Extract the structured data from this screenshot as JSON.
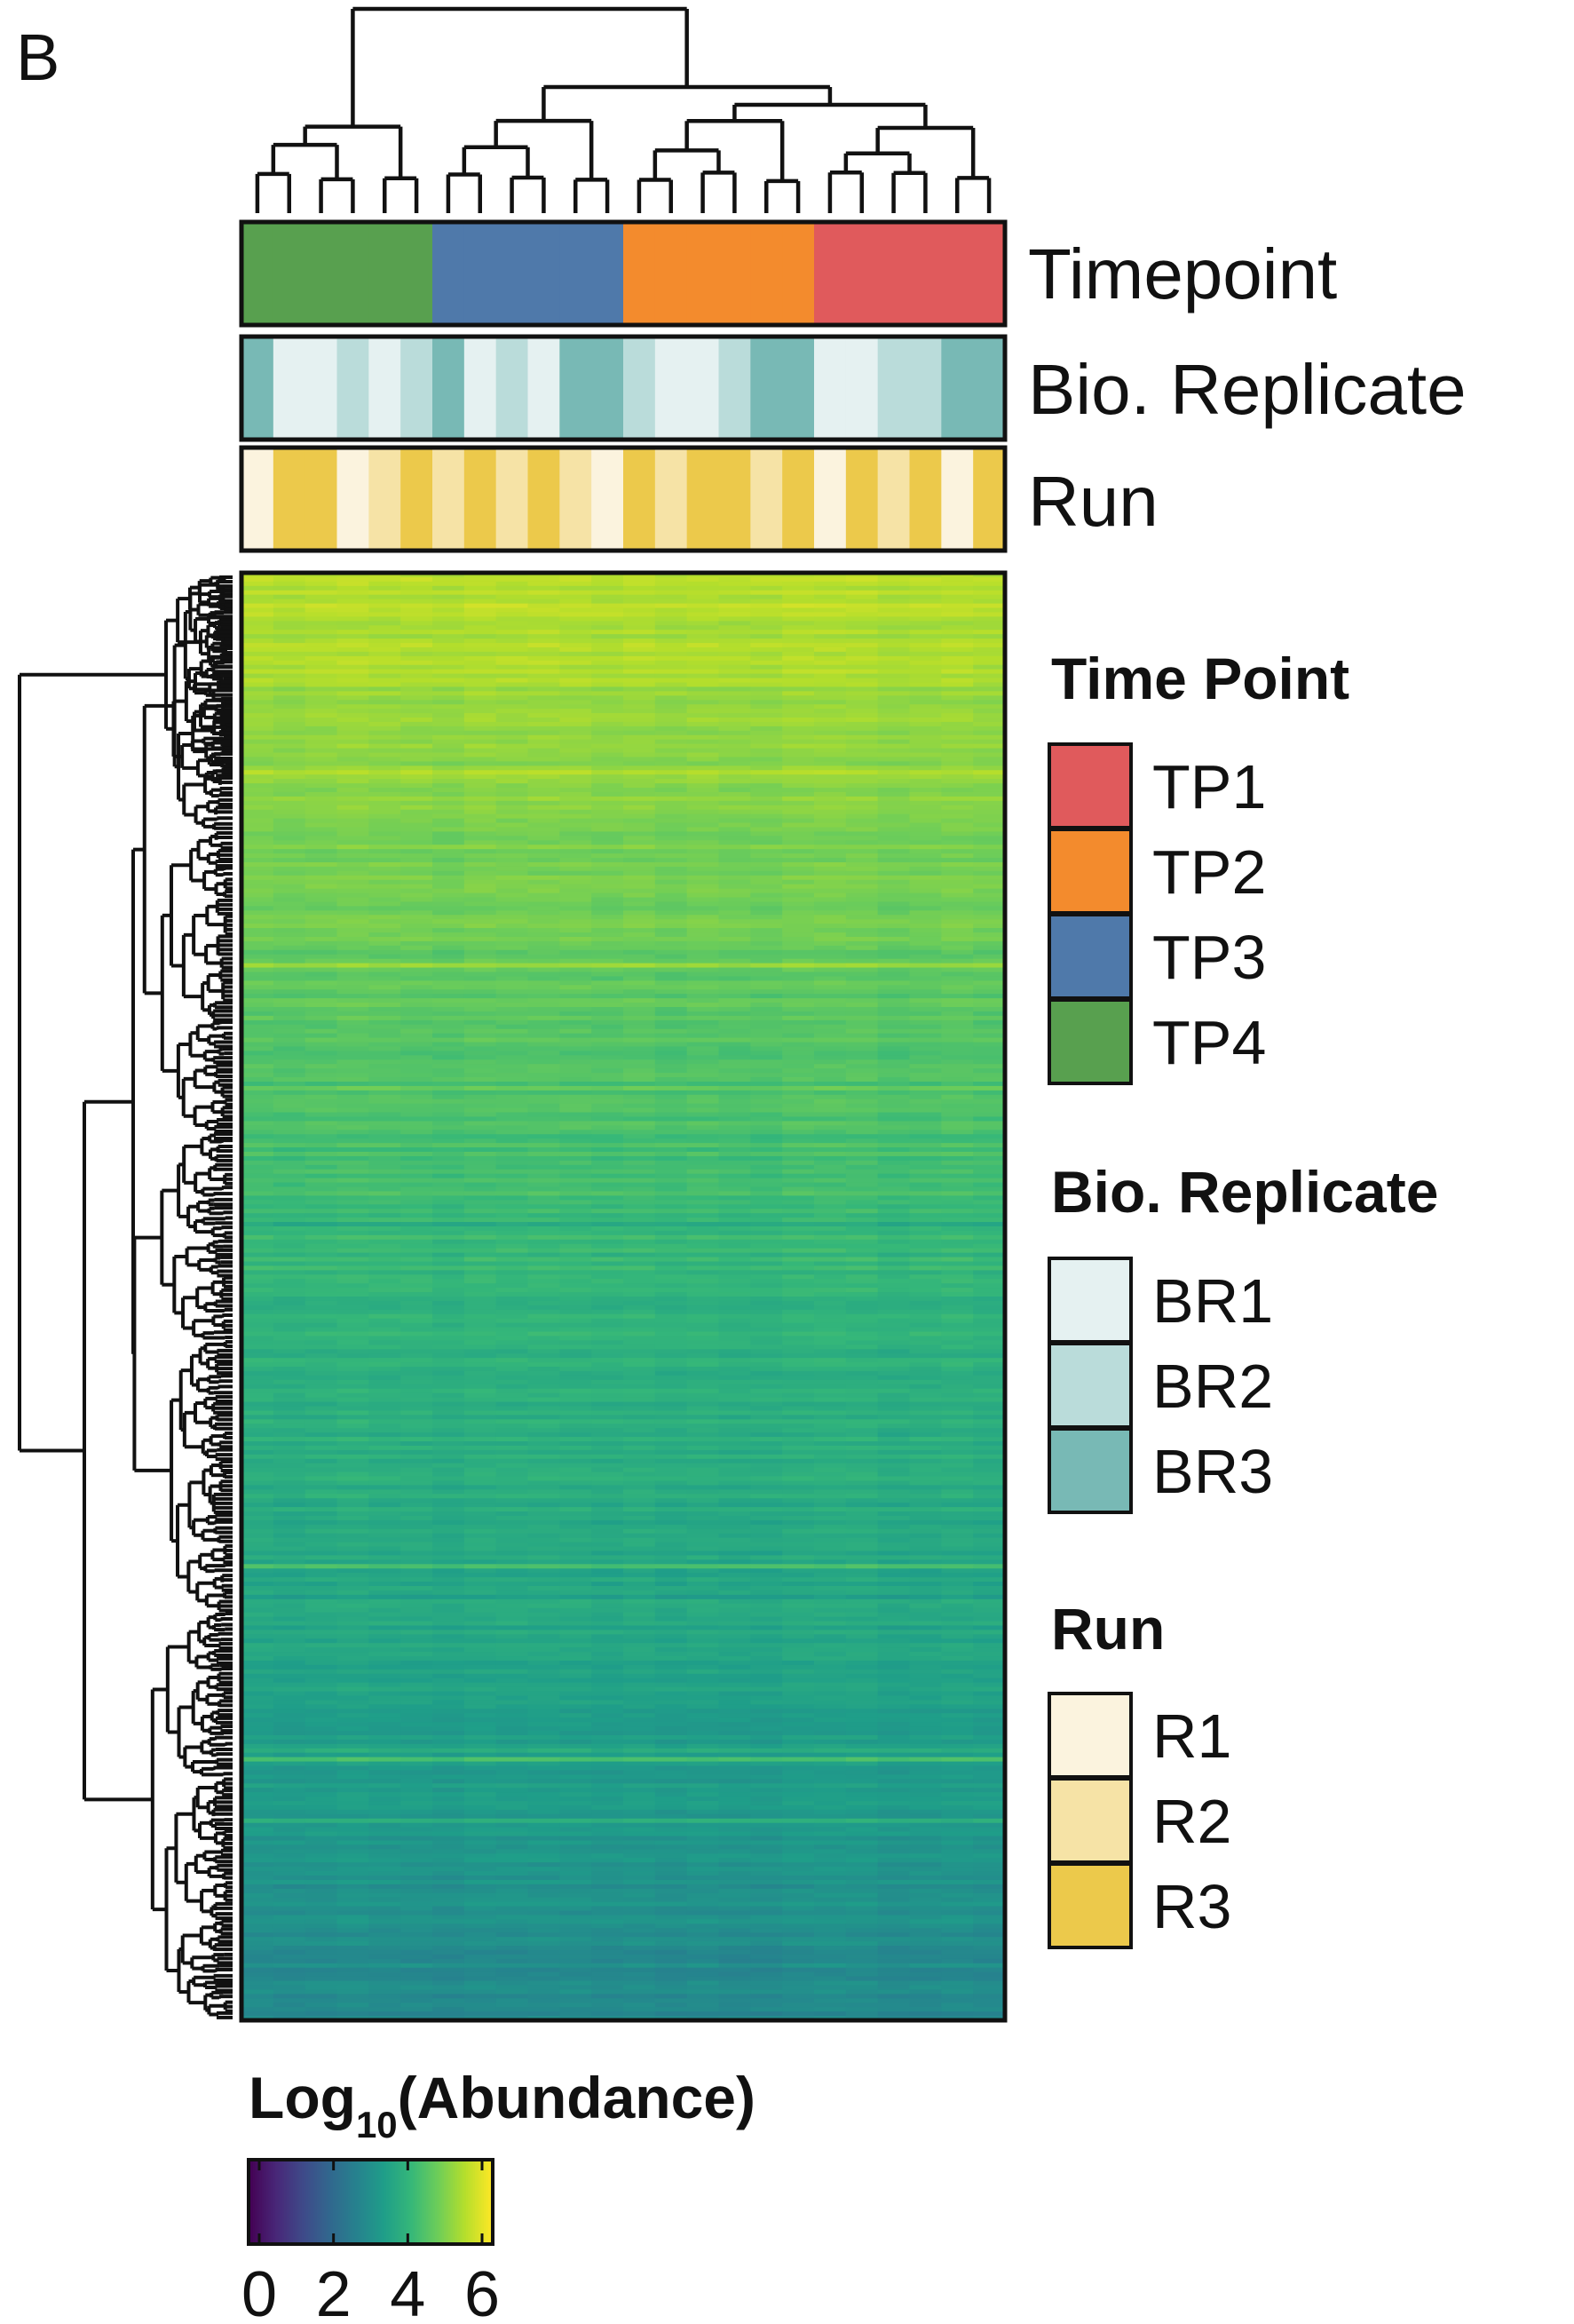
{
  "panel_label": "B",
  "annotation_tracks": [
    {
      "key": "timepoint",
      "label": "Timepoint"
    },
    {
      "key": "bio_replicate",
      "label": "Bio. Replicate"
    },
    {
      "key": "run",
      "label": "Run"
    }
  ],
  "legends": [
    {
      "title": "Time Point",
      "items": [
        {
          "label": "TP1",
          "color": "#e05a5c"
        },
        {
          "label": "TP2",
          "color": "#f38b2d"
        },
        {
          "label": "TP3",
          "color": "#4f79aa"
        },
        {
          "label": "TP4",
          "color": "#58a04f"
        }
      ]
    },
    {
      "title": "Bio. Replicate",
      "items": [
        {
          "label": "BR1",
          "color": "#e5f1f1"
        },
        {
          "label": "BR2",
          "color": "#badcda"
        },
        {
          "label": "BR3",
          "color": "#78b9b5"
        }
      ]
    },
    {
      "title": "Run",
      "items": [
        {
          "label": "R1",
          "color": "#fbf3de"
        },
        {
          "label": "R2",
          "color": "#f6e3a6"
        },
        {
          "label": "R3",
          "color": "#ecc94b"
        }
      ]
    }
  ],
  "colorbar": {
    "title_main": "Log",
    "title_sub": "10",
    "title_tail": "(Abundance)",
    "ticks": [
      0,
      2,
      4,
      6
    ],
    "range": [
      0,
      6
    ],
    "palette": "viridis"
  },
  "chart_data": {
    "type": "heatmap",
    "n_columns": 24,
    "column_groups": [
      {
        "timepoint": "TP4",
        "bio_replicates": [
          "BR3",
          "BR1",
          "BR1",
          "BR2",
          "BR1",
          "BR2"
        ],
        "runs": [
          "R1",
          "R3",
          "R3",
          "R1",
          "R2",
          "R3"
        ]
      },
      {
        "timepoint": "TP3",
        "bio_replicates": [
          "BR3",
          "BR1",
          "BR2",
          "BR1",
          "BR3",
          "BR3"
        ],
        "runs": [
          "R2",
          "R3",
          "R2",
          "R3",
          "R2",
          "R1"
        ]
      },
      {
        "timepoint": "TP2",
        "bio_replicates": [
          "BR2",
          "BR1",
          "BR1",
          "BR2",
          "BR3",
          "BR3"
        ],
        "runs": [
          "R3",
          "R2",
          "R3",
          "R3",
          "R2",
          "R3"
        ]
      },
      {
        "timepoint": "TP1",
        "bio_replicates": [
          "BR1",
          "BR1",
          "BR2",
          "BR2",
          "BR3",
          "BR3"
        ],
        "runs": [
          "R1",
          "R3",
          "R2",
          "R3",
          "R1",
          "R3"
        ]
      }
    ],
    "row_gradient_log10": {
      "top": 5.4,
      "upper_mid": 4.6,
      "middle": 3.9,
      "lower": 3.5,
      "bottom": 2.8
    },
    "value_range": [
      0,
      6
    ],
    "row_dendrogram": true,
    "column_dendrogram": true
  }
}
